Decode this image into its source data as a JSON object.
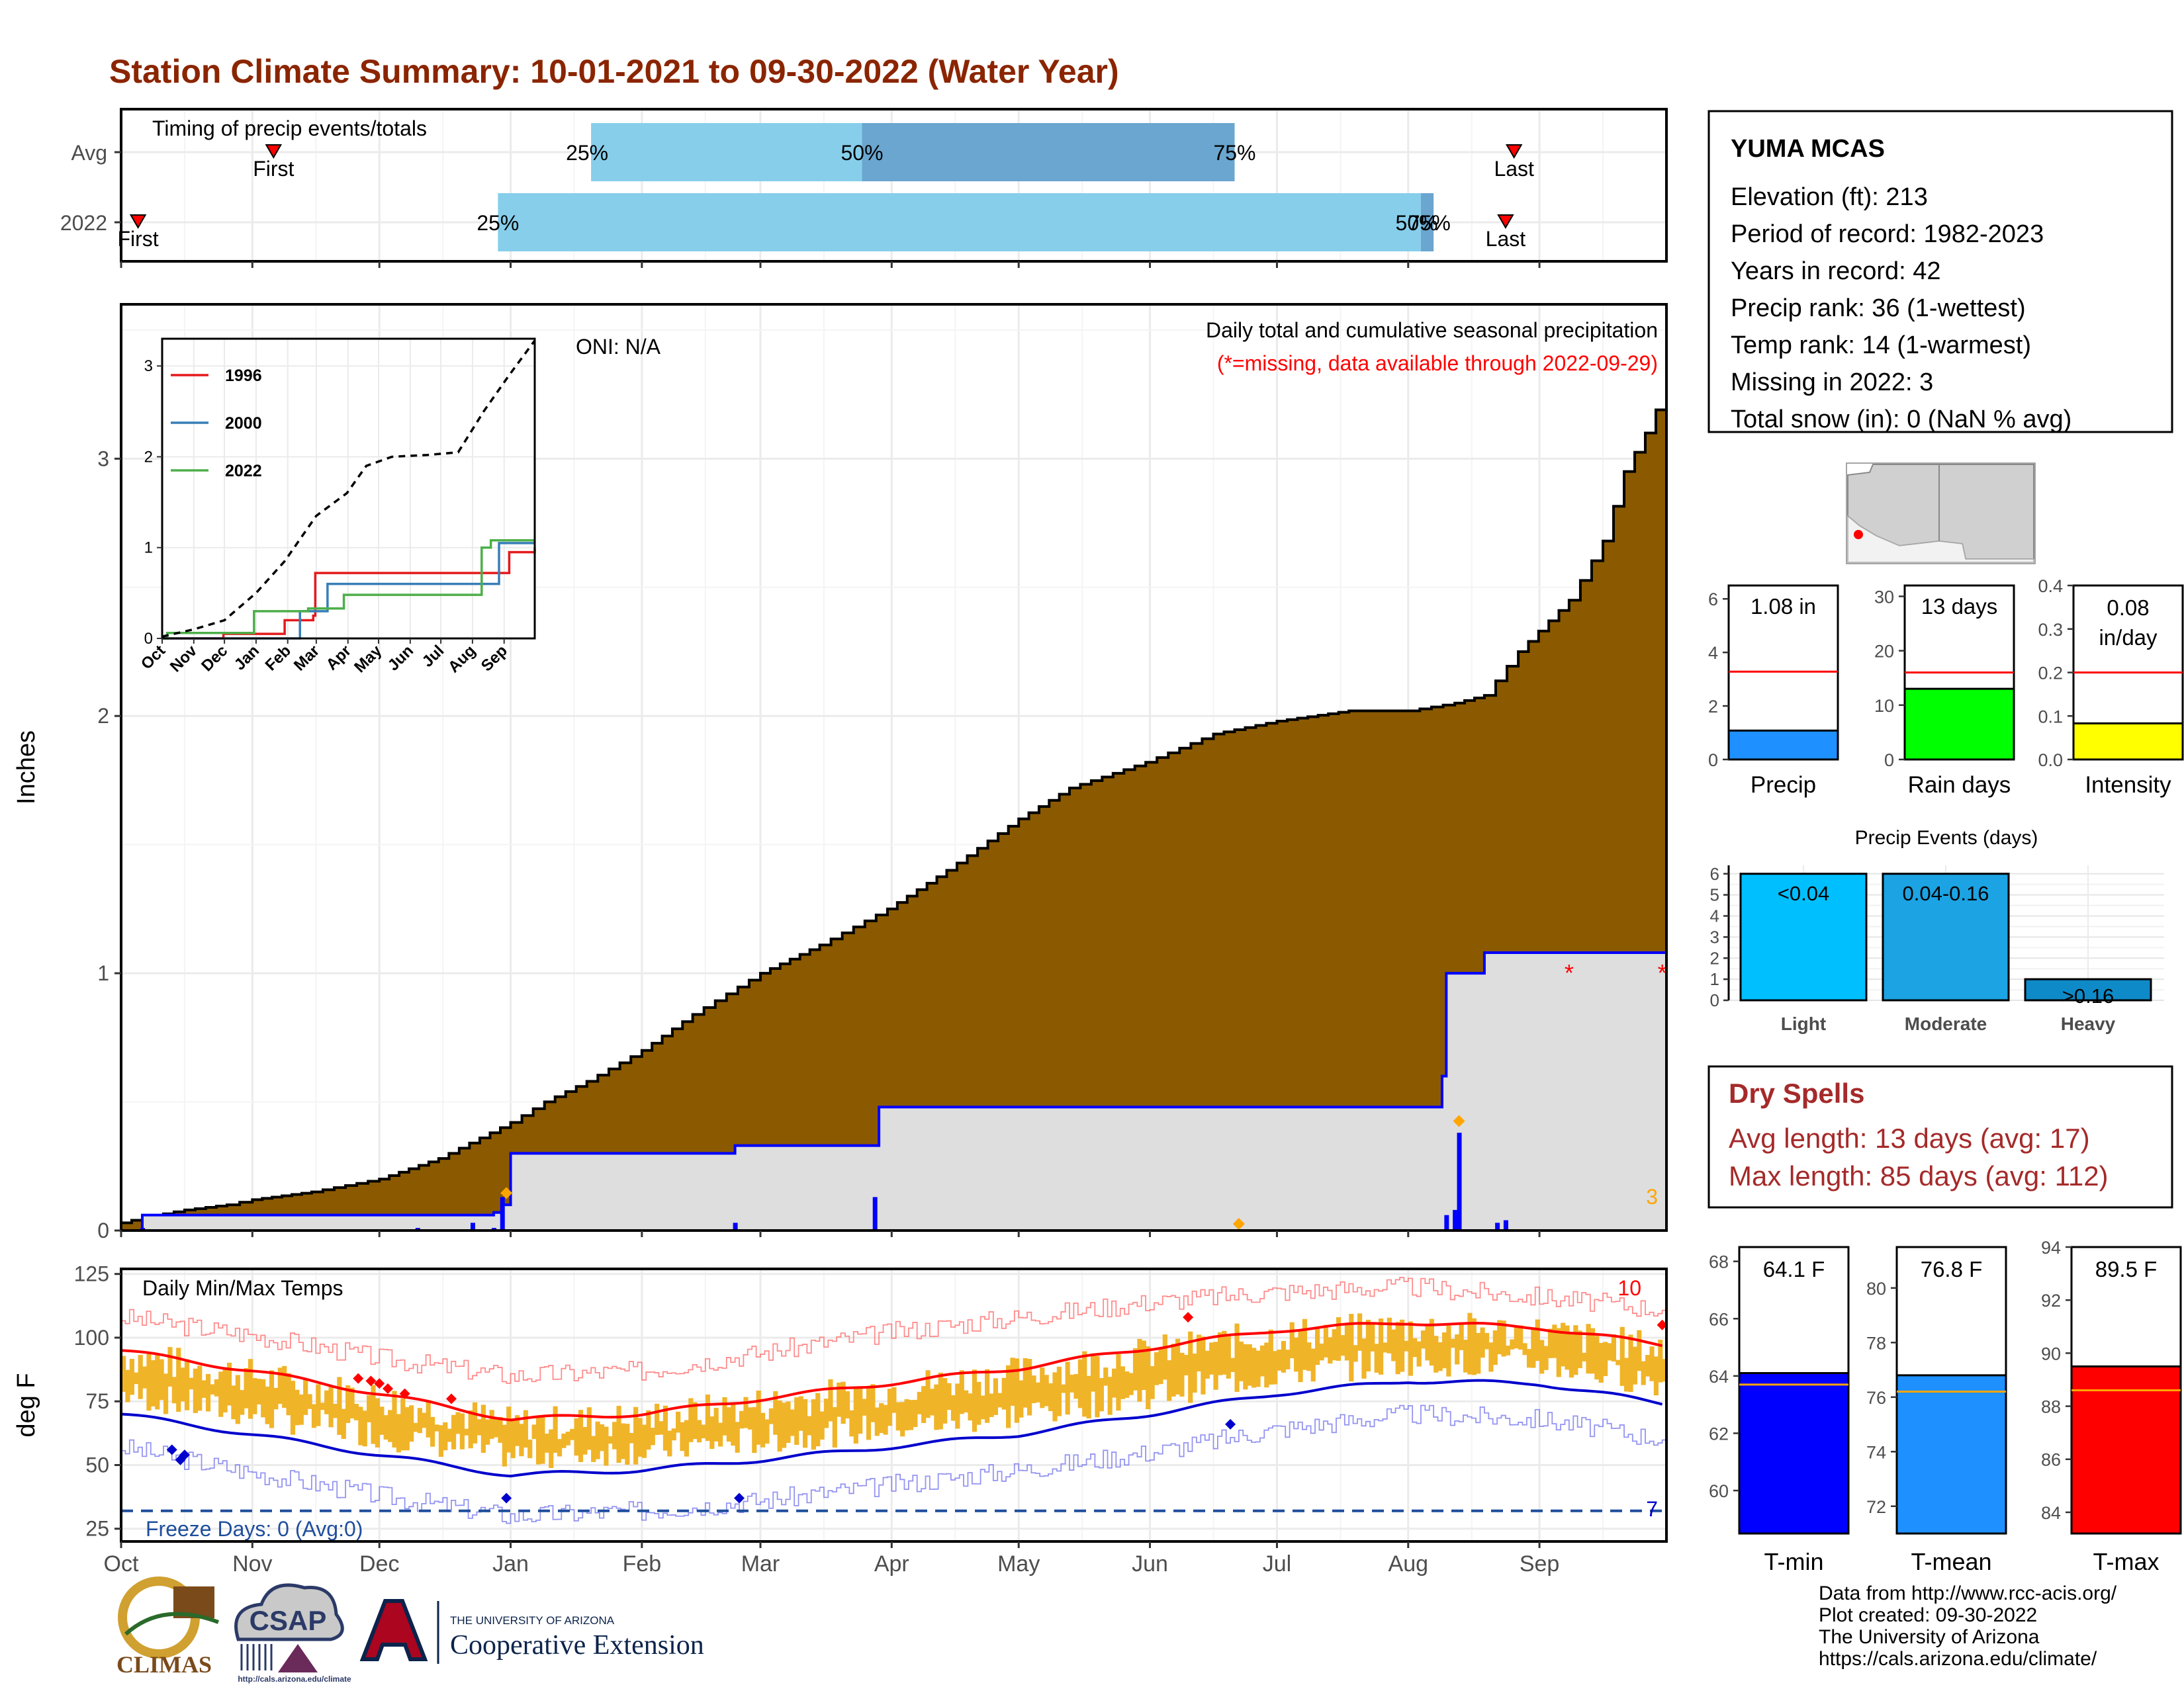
{
  "title": "Station Climate Summary: 10-01-2021 to 09-30-2022 (Water Year)",
  "months": [
    "Oct",
    "Nov",
    "Dec",
    "Jan",
    "Feb",
    "Mar",
    "Apr",
    "May",
    "Jun",
    "Jul",
    "Aug",
    "Sep"
  ],
  "colors": {
    "title": "#8b2500",
    "cum_area": "#8b5a00",
    "env": "#dedede",
    "light_blue": "#87ceeb",
    "mid_blue": "#6aa6cf",
    "tmax": "#ff0000",
    "tmin": "#0000cd",
    "temp_bar": "#f0b429",
    "dry": "#a52a2a"
  },
  "timing": {
    "label": "Timing of precip events/totals",
    "rows": [
      "Avg",
      "2022"
    ],
    "avg": {
      "first_label": "First",
      "last_label": "Last",
      "p25": "25%",
      "p50": "50%",
      "p75": "75%",
      "first_doy": 36,
      "q25_doy": 111,
      "q50_doy": 175,
      "q75_doy": 263,
      "last_doy": 329
    },
    "y2022": {
      "first_label": "First",
      "last_label": "Last",
      "p25": "25%",
      "p50": "50%",
      "p75": "75%",
      "first_doy": 4,
      "q25_doy": 89,
      "q75_doy": 310,
      "last_doy": 327
    }
  },
  "precip_panel": {
    "ylabel": "Inches",
    "yticks": [
      "0",
      "1",
      "2",
      "3"
    ],
    "oni": "ONI: N/A",
    "subtitle": "Daily total and cumulative seasonal precipitation",
    "missing_note": "(*=missing, data available through 2022-09-29)",
    "missing_count": "3",
    "missing_doy": [
      342,
      364
    ],
    "cumulative_avg": [
      [
        0,
        0.03
      ],
      [
        5,
        0.05
      ],
      [
        15,
        0.08
      ],
      [
        25,
        0.1
      ],
      [
        31,
        0.12
      ],
      [
        45,
        0.15
      ],
      [
        61,
        0.2
      ],
      [
        75,
        0.28
      ],
      [
        92,
        0.42
      ],
      [
        100,
        0.5
      ],
      [
        110,
        0.58
      ],
      [
        123,
        0.7
      ],
      [
        135,
        0.84
      ],
      [
        151,
        1.0
      ],
      [
        165,
        1.11
      ],
      [
        181,
        1.25
      ],
      [
        195,
        1.4
      ],
      [
        212,
        1.6
      ],
      [
        224,
        1.72
      ],
      [
        242,
        1.82
      ],
      [
        258,
        1.93
      ],
      [
        273,
        1.98
      ],
      [
        290,
        2.02
      ],
      [
        304,
        2.02
      ],
      [
        315,
        2.05
      ],
      [
        322,
        2.08
      ],
      [
        330,
        2.25
      ],
      [
        342,
        2.45
      ],
      [
        350,
        2.68
      ],
      [
        355,
        2.95
      ],
      [
        360,
        3.1
      ],
      [
        365,
        3.28
      ]
    ],
    "cumulative_2022": [
      [
        0,
        0.0
      ],
      [
        5,
        0.06
      ],
      [
        85,
        0.06
      ],
      [
        88,
        0.07
      ],
      [
        90,
        0.1
      ],
      [
        92,
        0.3
      ],
      [
        143,
        0.3
      ],
      [
        145,
        0.33
      ],
      [
        178,
        0.33
      ],
      [
        179,
        0.48
      ],
      [
        310,
        0.48
      ],
      [
        312,
        0.6
      ],
      [
        313,
        1.0
      ],
      [
        322,
        1.08
      ],
      [
        365,
        1.08
      ]
    ],
    "daily_2022": [
      [
        5,
        0.01
      ],
      [
        70,
        0.01
      ],
      [
        83,
        0.03
      ],
      [
        88,
        0.01
      ],
      [
        90,
        0.13
      ],
      [
        145,
        0.03
      ],
      [
        178,
        0.13
      ],
      [
        313,
        0.06
      ],
      [
        315,
        0.08
      ],
      [
        316,
        0.38
      ],
      [
        325,
        0.03
      ],
      [
        327,
        0.04
      ]
    ],
    "orange_markers": [
      [
        91,
        0.12
      ],
      [
        264,
        0.0
      ],
      [
        316,
        0.4
      ]
    ]
  },
  "inset": {
    "yticks": [
      "0",
      "1",
      "2",
      "3"
    ],
    "xticks": [
      "Oct",
      "Nov",
      "Dec",
      "Jan",
      "Feb",
      "Mar",
      "Apr",
      "May",
      "Jun",
      "Jul",
      "Aug",
      "Sep"
    ],
    "series": [
      {
        "name": "1996",
        "color": "#e41a1c",
        "values": [
          [
            0,
            0
          ],
          [
            60,
            0.05
          ],
          [
            120,
            0.2
          ],
          [
            148,
            0.25
          ],
          [
            150,
            0.72
          ],
          [
            330,
            0.72
          ],
          [
            340,
            0.95
          ],
          [
            365,
            1.0
          ]
        ]
      },
      {
        "name": "2000",
        "color": "#377eb8",
        "values": [
          [
            0,
            0
          ],
          [
            130,
            0
          ],
          [
            135,
            0.3
          ],
          [
            160,
            0.3
          ],
          [
            162,
            0.6
          ],
          [
            325,
            0.6
          ],
          [
            330,
            1.05
          ],
          [
            365,
            1.05
          ]
        ]
      },
      {
        "name": "2022",
        "color": "#4daf4a",
        "values": [
          [
            0,
            0
          ],
          [
            5,
            0.06
          ],
          [
            90,
            0.3
          ],
          [
            143,
            0.33
          ],
          [
            178,
            0.48
          ],
          [
            313,
            1.0
          ],
          [
            322,
            1.08
          ],
          [
            365,
            1.08
          ]
        ]
      }
    ],
    "average": [
      [
        0,
        0.02
      ],
      [
        31,
        0.1
      ],
      [
        61,
        0.2
      ],
      [
        92,
        0.5
      ],
      [
        120,
        0.85
      ],
      [
        151,
        1.35
      ],
      [
        181,
        1.6
      ],
      [
        200,
        1.9
      ],
      [
        225,
        2.0
      ],
      [
        260,
        2.02
      ],
      [
        290,
        2.05
      ],
      [
        315,
        2.5
      ],
      [
        340,
        2.9
      ],
      [
        365,
        3.28
      ]
    ]
  },
  "temp_panel": {
    "ylabel": "deg F",
    "label": "Daily Min/Max Temps",
    "yticks": [
      "25",
      "50",
      "75",
      "100",
      "125"
    ],
    "freeze": "Freeze Days: 0 (Avg:0)",
    "freeze_line": 32,
    "count_high": "10",
    "count_low": "7",
    "normal_max": [
      [
        0,
        95
      ],
      [
        31,
        87
      ],
      [
        61,
        78
      ],
      [
        92,
        68
      ],
      [
        123,
        70
      ],
      [
        151,
        76
      ],
      [
        181,
        82
      ],
      [
        212,
        88
      ],
      [
        243,
        96
      ],
      [
        273,
        103
      ],
      [
        304,
        106
      ],
      [
        335,
        104
      ],
      [
        365,
        97
      ]
    ],
    "normal_min": [
      [
        0,
        70
      ],
      [
        31,
        62
      ],
      [
        61,
        54
      ],
      [
        92,
        46
      ],
      [
        123,
        48
      ],
      [
        151,
        52
      ],
      [
        181,
        57
      ],
      [
        212,
        62
      ],
      [
        243,
        70
      ],
      [
        273,
        78
      ],
      [
        304,
        83
      ],
      [
        335,
        82
      ],
      [
        365,
        74
      ]
    ],
    "record_high": [
      [
        0,
        108
      ],
      [
        31,
        101
      ],
      [
        61,
        92
      ],
      [
        92,
        85
      ],
      [
        123,
        87
      ],
      [
        151,
        94
      ],
      [
        181,
        102
      ],
      [
        212,
        108
      ],
      [
        243,
        114
      ],
      [
        273,
        118
      ],
      [
        304,
        120
      ],
      [
        335,
        116
      ],
      [
        365,
        111
      ]
    ],
    "record_low": [
      [
        0,
        57
      ],
      [
        31,
        47
      ],
      [
        61,
        38
      ],
      [
        92,
        30
      ],
      [
        123,
        32
      ],
      [
        151,
        36
      ],
      [
        181,
        42
      ],
      [
        212,
        48
      ],
      [
        243,
        55
      ],
      [
        273,
        64
      ],
      [
        304,
        70
      ],
      [
        335,
        68
      ],
      [
        365,
        60
      ]
    ],
    "red_markers": [
      [
        56,
        84
      ],
      [
        59,
        83
      ],
      [
        61,
        82
      ],
      [
        63,
        80
      ],
      [
        67,
        78
      ],
      [
        78,
        76
      ],
      [
        252,
        108
      ],
      [
        364,
        105
      ]
    ],
    "blue_markers": [
      [
        12,
        56
      ],
      [
        14,
        52
      ],
      [
        15,
        54
      ],
      [
        91,
        37
      ],
      [
        146,
        37
      ],
      [
        262,
        66
      ]
    ]
  },
  "station": {
    "name": "YUMA MCAS",
    "lines": [
      "Elevation (ft): 213",
      "Period of record: 1982-2023",
      "Years in record: 42",
      "Precip rank: 36 (1-wettest)",
      "Temp rank: 14 (1-warmest)",
      "Missing in 2022: 3",
      "Total snow (in): 0 (NaN % avg)"
    ]
  },
  "mini_precip": [
    {
      "label": "Precip",
      "value_text": "1.08 in",
      "value": 1.08,
      "avg": 3.28,
      "ymax": 6.5,
      "yticks": [
        "0",
        "2",
        "4",
        "6"
      ],
      "color": "#1e90ff"
    },
    {
      "label": "Rain days",
      "value_text": "13 days",
      "value": 13,
      "avg": 16,
      "ymax": 32,
      "yticks": [
        "0",
        "10",
        "20",
        "30"
      ],
      "color": "#00ff00"
    },
    {
      "label": "Intensity",
      "value_text1": "0.08",
      "value_text2": "in/day",
      "value": 0.083,
      "avg": 0.2,
      "ymax": 0.4,
      "yticks": [
        "0.0",
        "0.1",
        "0.2",
        "0.3",
        "0.4"
      ],
      "color": "#ffff00"
    }
  ],
  "events": {
    "title": "Precip Events (days)",
    "yticks": [
      "0",
      "1",
      "2",
      "3",
      "4",
      "5",
      "6"
    ],
    "bars": [
      {
        "cat": "Light",
        "range": "<0.04",
        "value": 6,
        "color": "#00bfff"
      },
      {
        "cat": "Moderate",
        "range": "0.04-0.16",
        "value": 6,
        "color": "#1ca3e3"
      },
      {
        "cat": "Heavy",
        "range": ">0.16",
        "value": 1,
        "color": "#0f8ac8"
      }
    ]
  },
  "dry": {
    "title": "Dry Spells",
    "avg": "Avg length: 13 days (avg: 17)",
    "max": "Max length: 85 days (avg: 112)"
  },
  "mini_temp": [
    {
      "label": "T-min",
      "value_text": "64.1 F",
      "value": 64.1,
      "avg": 63.7,
      "ymin": 58.5,
      "ymax": 68.5,
      "yticks": [
        "60",
        "62",
        "64",
        "66",
        "68"
      ],
      "color": "#0000ff"
    },
    {
      "label": "T-mean",
      "value_text": "76.8 F",
      "value": 76.8,
      "avg": 76.2,
      "ymin": 71,
      "ymax": 81.5,
      "yticks": [
        "72",
        "74",
        "76",
        "78",
        "80"
      ],
      "color": "#1e90ff"
    },
    {
      "label": "T-max",
      "value_text": "89.5 F",
      "value": 89.5,
      "avg": 88.6,
      "ymin": 83.2,
      "ymax": 94,
      "yticks": [
        "84",
        "86",
        "88",
        "90",
        "92",
        "94"
      ],
      "color": "#ff0000"
    }
  ],
  "footer": {
    "lines": [
      "Data from http://www.rcc-acis.org/",
      "Plot created: 09-30-2022",
      "The University of Arizona",
      "https://cals.arizona.edu/climate/"
    ],
    "climas": "CLIMAS",
    "csap": "CSAP",
    "csap_url": "http://cals.arizona.edu/climate",
    "ua_small": "THE UNIVERSITY OF ARIZONA",
    "ua_big": "Cooperative Extension"
  },
  "chart_data": [
    {
      "type": "area",
      "title": "Daily total and cumulative seasonal precipitation",
      "ylabel": "Inches",
      "ylim": [
        0,
        3.6
      ],
      "x": "day of water year (Oct 1 = 0)",
      "series": [
        {
          "name": "2022"
        }
      ]
    },
    {
      "type": "line",
      "title": "Daily Min/Max Temps",
      "ylabel": "deg F",
      "ylim": [
        20,
        127
      ]
    },
    {
      "type": "bar",
      "categories": [
        "Light",
        "Moderate",
        "Heavy"
      ],
      "values": [
        6,
        6,
        1
      ],
      "title": "Precip Events (days)"
    }
  ]
}
